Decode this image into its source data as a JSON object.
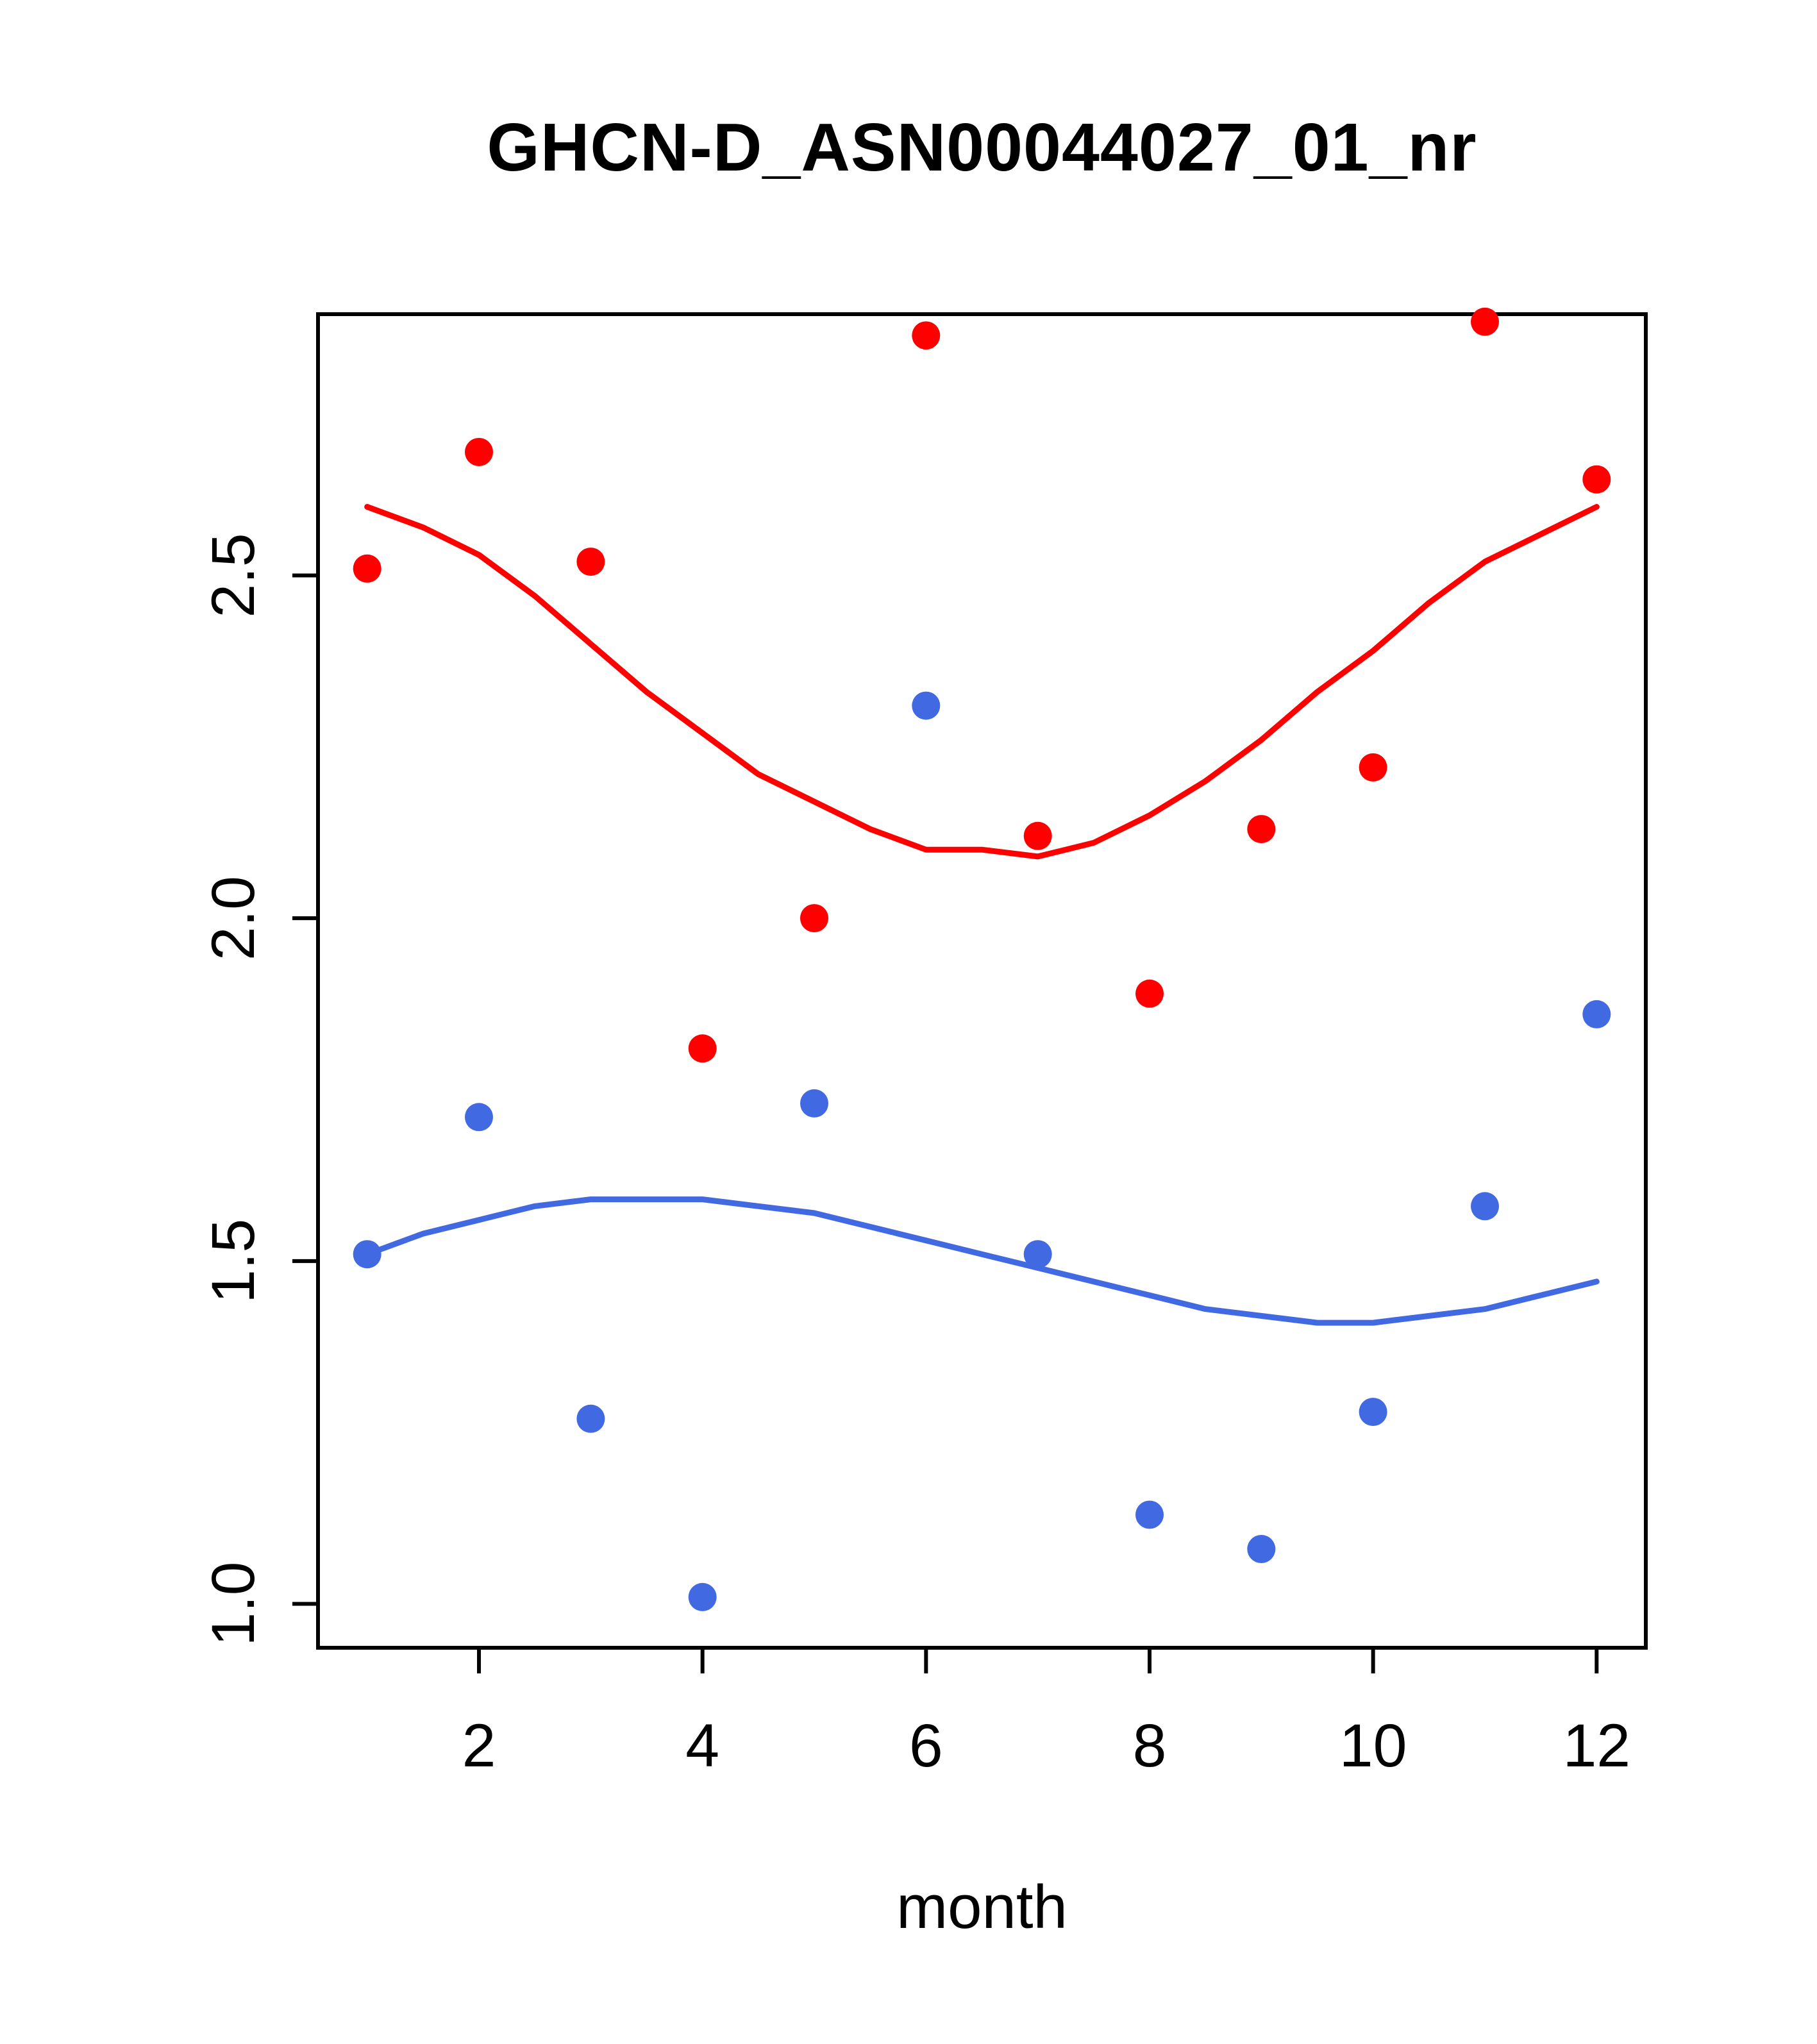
{
  "chart_data": {
    "type": "scatter",
    "title": "GHCN-D_ASN00044027_01_nr",
    "xlabel": "month",
    "ylabel": "",
    "xlim": [
      0.56,
      12.44
    ],
    "ylim": [
      0.936,
      2.881
    ],
    "xticks": [
      2,
      4,
      6,
      8,
      10,
      12
    ],
    "ytick_values": [
      1.0,
      1.5,
      2.0,
      2.5
    ],
    "ytick_labels": [
      "1.0",
      "1.5",
      "2.0",
      "2.5"
    ],
    "grid": false,
    "legend": "none",
    "colors": {
      "red_series": "#ff0000",
      "blue_series": "#4169e1"
    },
    "x": [
      1,
      2,
      3,
      4,
      5,
      6,
      7,
      8,
      9,
      10,
      11,
      12
    ],
    "series": [
      {
        "name": "red-points",
        "color": "#ff0000",
        "values": [
          2.51,
          2.68,
          2.52,
          1.81,
          2.0,
          2.85,
          2.12,
          1.89,
          2.13,
          2.22,
          2.87,
          2.64
        ]
      },
      {
        "name": "blue-points",
        "color": "#4169e1",
        "values": [
          1.51,
          1.71,
          1.27,
          1.01,
          1.73,
          2.31,
          1.51,
          1.13,
          1.08,
          1.28,
          1.58,
          1.86
        ]
      }
    ],
    "smooth_lines": [
      {
        "name": "red-smooth",
        "color": "#ff0000",
        "x": [
          1,
          1.5,
          2,
          2.5,
          3,
          3.5,
          4,
          4.5,
          5,
          5.5,
          6,
          6.5,
          7,
          7.5,
          8,
          8.5,
          9,
          9.5,
          10,
          10.5,
          11,
          11.5,
          12
        ],
        "values": [
          2.6,
          2.57,
          2.53,
          2.47,
          2.4,
          2.33,
          2.27,
          2.21,
          2.17,
          2.13,
          2.1,
          2.1,
          2.09,
          2.11,
          2.15,
          2.2,
          2.26,
          2.33,
          2.39,
          2.46,
          2.52,
          2.56,
          2.6
        ]
      },
      {
        "name": "blue-smooth",
        "color": "#4169e1",
        "x": [
          1,
          1.5,
          2,
          2.5,
          3,
          3.5,
          4,
          4.5,
          5,
          5.5,
          6,
          6.5,
          7,
          7.5,
          8,
          8.5,
          9,
          9.5,
          10,
          10.5,
          11,
          11.5,
          12
        ],
        "values": [
          1.51,
          1.54,
          1.56,
          1.58,
          1.59,
          1.59,
          1.59,
          1.58,
          1.57,
          1.55,
          1.53,
          1.51,
          1.49,
          1.47,
          1.45,
          1.43,
          1.42,
          1.41,
          1.41,
          1.42,
          1.43,
          1.45,
          1.47
        ]
      }
    ]
  }
}
